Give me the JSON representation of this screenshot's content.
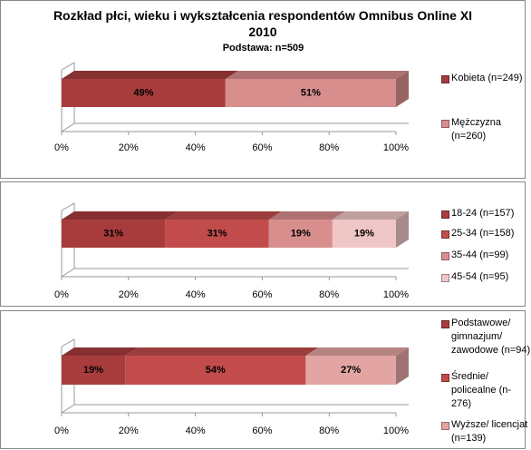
{
  "chart_data": [
    {
      "type": "bar",
      "orientation": "horizontal",
      "stacked": true,
      "title": "Rozkład płci, wieku i wykształcenia respondentów Omnibus Online XI 2010",
      "subtitle": "Podstawa: n=509",
      "categories": [
        null
      ],
      "series": [
        {
          "name": "Kobieta (n=249)",
          "color": "#a83c3c",
          "values": [
            49
          ],
          "value_labels": [
            "49%"
          ]
        },
        {
          "name": "Mężczyzna (n=260)",
          "color": "#d98e8e",
          "values": [
            51
          ],
          "value_labels": [
            "51%"
          ]
        }
      ],
      "xlim": [
        0,
        100
      ],
      "xticks": [
        {
          "value": 0,
          "label": "0%"
        },
        {
          "value": 20,
          "label": "20%"
        },
        {
          "value": 40,
          "label": "40%"
        },
        {
          "value": 60,
          "label": "60%"
        },
        {
          "value": 80,
          "label": "80%"
        },
        {
          "value": 100,
          "label": "100%"
        }
      ],
      "legend": "right"
    },
    {
      "type": "bar",
      "orientation": "horizontal",
      "stacked": true,
      "categories": [
        null
      ],
      "series": [
        {
          "name": "18-24 (n=157)",
          "color": "#a83c3c",
          "values": [
            31
          ],
          "value_labels": [
            "31%"
          ]
        },
        {
          "name": "25-34 (n=158)",
          "color": "#c24c4c",
          "values": [
            31
          ],
          "value_labels": [
            "31%"
          ]
        },
        {
          "name": "35-44 (n=99)",
          "color": "#d98e8e",
          "values": [
            19
          ],
          "value_labels": [
            "19%"
          ]
        },
        {
          "name": "45-54 (n=95)",
          "color": "#efc6c6",
          "values": [
            19
          ],
          "value_labels": [
            "19%"
          ]
        }
      ],
      "xlim": [
        0,
        100
      ],
      "xticks": [
        {
          "value": 0,
          "label": "0%"
        },
        {
          "value": 20,
          "label": "20%"
        },
        {
          "value": 40,
          "label": "40%"
        },
        {
          "value": 60,
          "label": "60%"
        },
        {
          "value": 80,
          "label": "80%"
        },
        {
          "value": 100,
          "label": "100%"
        }
      ],
      "legend": "right"
    },
    {
      "type": "bar",
      "orientation": "horizontal",
      "stacked": true,
      "categories": [
        null
      ],
      "series": [
        {
          "name": "Podstawowe/ gimnazjum/ zawodowe (n=94)",
          "color": "#a83c3c",
          "values": [
            19
          ],
          "value_labels": [
            "19%"
          ]
        },
        {
          "name": "Średnie/ policealne (n-276)",
          "color": "#c24c4c",
          "values": [
            54
          ],
          "value_labels": [
            "54%"
          ]
        },
        {
          "name": "Wyższe/ licencjat (n=139)",
          "color": "#e3a4a4",
          "values": [
            27
          ],
          "value_labels": [
            "27%"
          ]
        }
      ],
      "xlim": [
        0,
        100
      ],
      "xticks": [
        {
          "value": 0,
          "label": "0%"
        },
        {
          "value": 20,
          "label": "20%"
        },
        {
          "value": 40,
          "label": "40%"
        },
        {
          "value": 60,
          "label": "60%"
        },
        {
          "value": 80,
          "label": "80%"
        },
        {
          "value": 100,
          "label": "100%"
        }
      ],
      "legend": "right"
    }
  ]
}
